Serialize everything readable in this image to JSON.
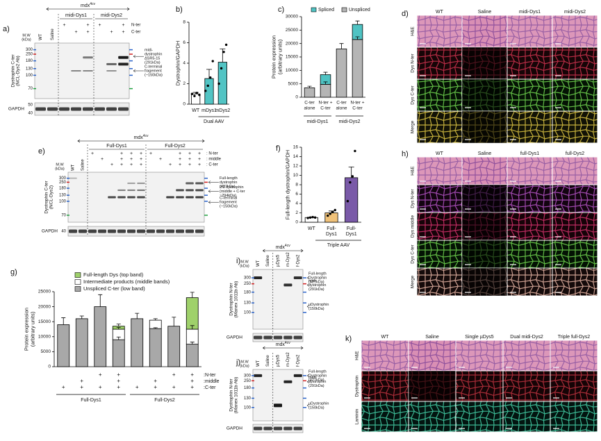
{
  "chart_data": [
    {
      "type": "bar",
      "label": "b)",
      "ylabel": [
        "Dystrophin/GAPDH"
      ],
      "categories": [
        [
          "WT"
        ],
        [
          "mDys1"
        ],
        [
          "mDys2"
        ]
      ],
      "values": [
        1,
        2.5,
        4.1
      ],
      "errors": [
        0.15,
        0.9,
        1.3
      ],
      "points": [
        [
          1,
          0.8,
          1.1,
          0.9
        ],
        [
          1.3,
          1.8,
          2.6,
          4.2
        ],
        [
          2.0,
          3.5,
          5.1,
          5.8
        ]
      ],
      "colors": [
        "#ffffff",
        "#52c4c4",
        "#52c4c4"
      ],
      "ylim": [
        0,
        8
      ],
      "yticks": [
        0,
        2,
        4,
        6,
        8
      ],
      "group_label": "Dual AAV"
    },
    {
      "type": "stacked_bar",
      "label": "c)",
      "ylabel": [
        "Protein expression",
        "(arbitrary units)"
      ],
      "categories": [
        [
          "C-ter",
          "alone"
        ],
        [
          "N-ter +",
          "C-ter"
        ],
        [
          "C-ter",
          "alone"
        ],
        [
          "N-ter +",
          "C-ter"
        ]
      ],
      "groups": [
        "midi-Dys1",
        "midi-Dys2"
      ],
      "series": [
        {
          "name": "Spliced",
          "color": "#4fc3c3",
          "values": [
            0,
            3600,
            0,
            5600
          ],
          "errors": [
            null,
            900,
            null,
            1300
          ]
        },
        {
          "name": "Unspliced",
          "color": "#b5b5b5",
          "values": [
            3500,
            4800,
            18000,
            21500
          ],
          "errors": [
            600,
            900,
            2000,
            1000
          ]
        }
      ],
      "ylim": [
        0,
        30000
      ],
      "yticks": [
        0,
        5000,
        10000,
        15000,
        20000,
        25000,
        30000
      ],
      "legend": "top"
    },
    {
      "type": "bar",
      "label": "f)",
      "ylabel": [
        "Full-length dystrophin/GAPDH"
      ],
      "categories": [
        [
          "WT"
        ],
        [
          "Full-",
          "Dys1"
        ],
        [
          "Full-",
          "Dys1"
        ]
      ],
      "values": [
        1,
        2,
        9.5
      ],
      "errors": [
        0.1,
        0.4,
        2.3
      ],
      "points": [
        [
          0.9,
          1.0,
          1.1,
          1.0
        ],
        [
          1.4,
          1.8,
          2.2,
          2.6
        ],
        [
          4.5,
          8.5,
          9.8,
          15.2
        ]
      ],
      "colors": [
        "#ffffff",
        "#f0c27a",
        "#7a5aa8"
      ],
      "ylim": [
        0,
        16
      ],
      "yticks": [
        0,
        2,
        4,
        6,
        8,
        10,
        12,
        14,
        16
      ],
      "group_label": "Triple AAV"
    },
    {
      "type": "stacked_bar",
      "label": "g)",
      "ylabel": [
        "Protein expression",
        "(arbitrary units)"
      ],
      "conditions": [
        {
          "name": ":N-ter",
          "marks": [
            null,
            null,
            "+",
            "+",
            null,
            null,
            "+",
            "+"
          ]
        },
        {
          "name": ":middle",
          "marks": [
            null,
            "+",
            null,
            "+",
            null,
            "+",
            null,
            "+"
          ]
        },
        {
          "name": ":C-ter",
          "marks": [
            "+",
            "+",
            "+",
            "+",
            "+",
            "+",
            "+",
            "+"
          ]
        }
      ],
      "groups": [
        "Full-Dys1",
        "Full-Dys2"
      ],
      "series": [
        {
          "name": "Full-length Dys (top band)",
          "color": "#9fd16b",
          "values": [
            0,
            0,
            0,
            1000,
            0,
            0,
            0,
            10500
          ],
          "errors": [
            null,
            null,
            null,
            700,
            null,
            null,
            null,
            1800
          ]
        },
        {
          "name": "Intermediate products (middle bands)",
          "color": "#ffffff",
          "values": [
            0,
            0,
            0,
            3500,
            0,
            2800,
            0,
            5000
          ],
          "errors": [
            null,
            null,
            null,
            600,
            null,
            500,
            null,
            1200
          ]
        },
        {
          "name": "Unspliced C-ter (low band)",
          "color": "#a8a8a8",
          "values": [
            14000,
            16000,
            20000,
            9000,
            16000,
            12700,
            13500,
            7500
          ],
          "errors": [
            2300,
            900,
            4000,
            900,
            1800,
            300,
            3000,
            700
          ]
        }
      ],
      "ylim": [
        0,
        25000
      ],
      "yticks": [
        0,
        5000,
        10000,
        15000,
        20000,
        25000
      ],
      "legend": "top left"
    }
  ],
  "blots": [
    {
      "label": "a)",
      "header": {
        "base": "mdx",
        "sup": "4cv"
      },
      "lanes": [
        "WT",
        "Saline",
        null,
        null,
        null,
        null,
        null,
        null
      ],
      "subgroups": [
        "midi-Dys1",
        "midi-Dys2"
      ],
      "rows": [
        {
          "name": "N-ter",
          "marks": [
            null,
            null,
            "+",
            null,
            "+",
            "+",
            null,
            "+"
          ]
        },
        {
          "name": "C-ter",
          "marks": [
            null,
            null,
            null,
            "+",
            "+",
            null,
            "+",
            "+"
          ]
        }
      ],
      "mw_title": [
        "M.W",
        "(kDa)"
      ],
      "mw": [
        300,
        250,
        180,
        130,
        100,
        70
      ],
      "ylabel": [
        "Dystrophin C-ter",
        "(NCL-Dys2 Ab)"
      ],
      "annotations": [
        [
          "midi-",
          "dystrophin",
          "ΔSR5-15",
          "(291kDa)"
        ],
        [
          "C-terminal",
          "fragement",
          "(~150kDa)"
        ]
      ],
      "loading": "GAPDH",
      "loading_mw": [
        50,
        40
      ]
    },
    {
      "label": "e)",
      "header": {
        "base": "mdx",
        "sup": "4cv"
      },
      "lanes": [
        "WT",
        "Saline",
        null,
        null,
        null,
        null,
        null,
        null,
        null,
        null,
        null,
        null,
        null,
        null
      ],
      "subgroups": [
        "Full-Dys1",
        "Full-Dys2"
      ],
      "rows": [
        {
          "name": ": N-ter",
          "marks": [
            null,
            null,
            "+",
            null,
            null,
            "+",
            "+",
            "+",
            "+",
            null,
            null,
            "+",
            "+",
            "+"
          ]
        },
        {
          "name": ": middle",
          "marks": [
            null,
            null,
            null,
            "+",
            null,
            "+",
            "+",
            "+",
            null,
            "+",
            null,
            "+",
            "+",
            "+"
          ]
        },
        {
          "name": ": C-ter",
          "marks": [
            null,
            null,
            null,
            null,
            "+",
            "+",
            "+",
            "+",
            null,
            null,
            "+",
            "+",
            "+",
            "+"
          ]
        }
      ],
      "mw_title": [
        "M.W",
        "(kDa)"
      ],
      "mw": [
        300,
        250,
        180,
        130,
        100,
        70
      ],
      "ylabel": [
        "Dystrophin C-ter",
        "(NCL-Dys2)"
      ],
      "annotations": [
        [
          "Full-length",
          "dystrophin",
          "(427kDa)"
        ],
        [
          "2/3 dystrophin",
          "(middle + C-ter",
          "~294kDa)"
        ],
        [
          "C-terminal",
          "fragement",
          "(~150kDa)"
        ]
      ],
      "loading": "GAPDH",
      "loading_mw": [
        40
      ]
    },
    {
      "label": "i)",
      "header": {
        "base": "mdx",
        "sup": "4cv"
      },
      "lanes": [
        "WT",
        "Saline",
        "µDys5",
        "m-Dys2",
        "f-Dys2"
      ],
      "mw_title": [
        "M.W",
        "(kDa)"
      ],
      "mw": [
        300,
        250,
        180,
        130,
        100
      ],
      "ylabel": [
        "Dystrophin N-ter",
        "(Manex 1011b Ab)"
      ],
      "annotations": [
        [
          "Full-length",
          "Dystrophin",
          "(427kDa)"
        ],
        [
          "midi-",
          "dystrophin",
          "(291kDa)"
        ],
        [
          "µDystrophin",
          "(150kDa)"
        ]
      ],
      "loading": "GAPDH"
    },
    {
      "label": "j)",
      "header": {
        "base": "mdx",
        "sup": "4cv"
      },
      "lanes": [
        "WT",
        "Saline",
        "µDys5",
        "m-Dys2",
        "f-Dys2"
      ],
      "mw_title": [
        "M.W",
        "(kDa)"
      ],
      "mw": [
        300,
        250,
        180,
        130,
        100
      ],
      "ylabel": [
        "Dystrophin N-ter",
        "(Manex 1011b Ab)"
      ],
      "annotations": [
        [
          "Full-length",
          "Dystrophin",
          "(427kDa)"
        ],
        [
          "midi-",
          "dystrophin",
          "(291kDa)"
        ],
        [
          "µDystrophin",
          "(150kDa)"
        ]
      ],
      "loading": "GAPDH"
    }
  ],
  "micrographs": [
    {
      "label": "d)",
      "columns": [
        "WT",
        "Saline",
        "midi-Dys1",
        "midi-Dys2"
      ],
      "rows": [
        "H&E",
        "Dys N-ter",
        "Dys C-ter",
        "Merge"
      ],
      "row_colors": [
        [
          "#d98fb4",
          "#8a4c9a"
        ],
        [
          "#160507",
          "#c8304a"
        ],
        [
          "#041204",
          "#6ccf4c"
        ],
        [
          "#121206",
          "#d8c040"
        ]
      ]
    },
    {
      "label": "h)",
      "columns": [
        "WT",
        "Saline",
        "full-Dys1",
        "full-Dys2"
      ],
      "rows": [
        "H&E",
        "Dys N-ter",
        "Dys middle",
        "Dys C-ter",
        "Merge"
      ],
      "row_colors": [
        [
          "#d98fb4",
          "#8a4c9a"
        ],
        [
          "#12040f",
          "#b050c0"
        ],
        [
          "#150308",
          "#d0306a"
        ],
        [
          "#041204",
          "#6ccf4c"
        ],
        [
          "#140a0a",
          "#e0b0a0"
        ]
      ]
    },
    {
      "label": "k)",
      "columns": [
        "WT",
        "Saline",
        "Single µDys5",
        "Dual midi-Dys2",
        "Triple full-Dys2"
      ],
      "rows": [
        "H&E",
        "Dystrophin",
        "Laminin"
      ],
      "row_colors": [
        [
          "#d98fb4",
          "#8a4c9a"
        ],
        [
          "#150406",
          "#b8303c"
        ],
        [
          "#031410",
          "#40c8a0"
        ]
      ]
    }
  ]
}
